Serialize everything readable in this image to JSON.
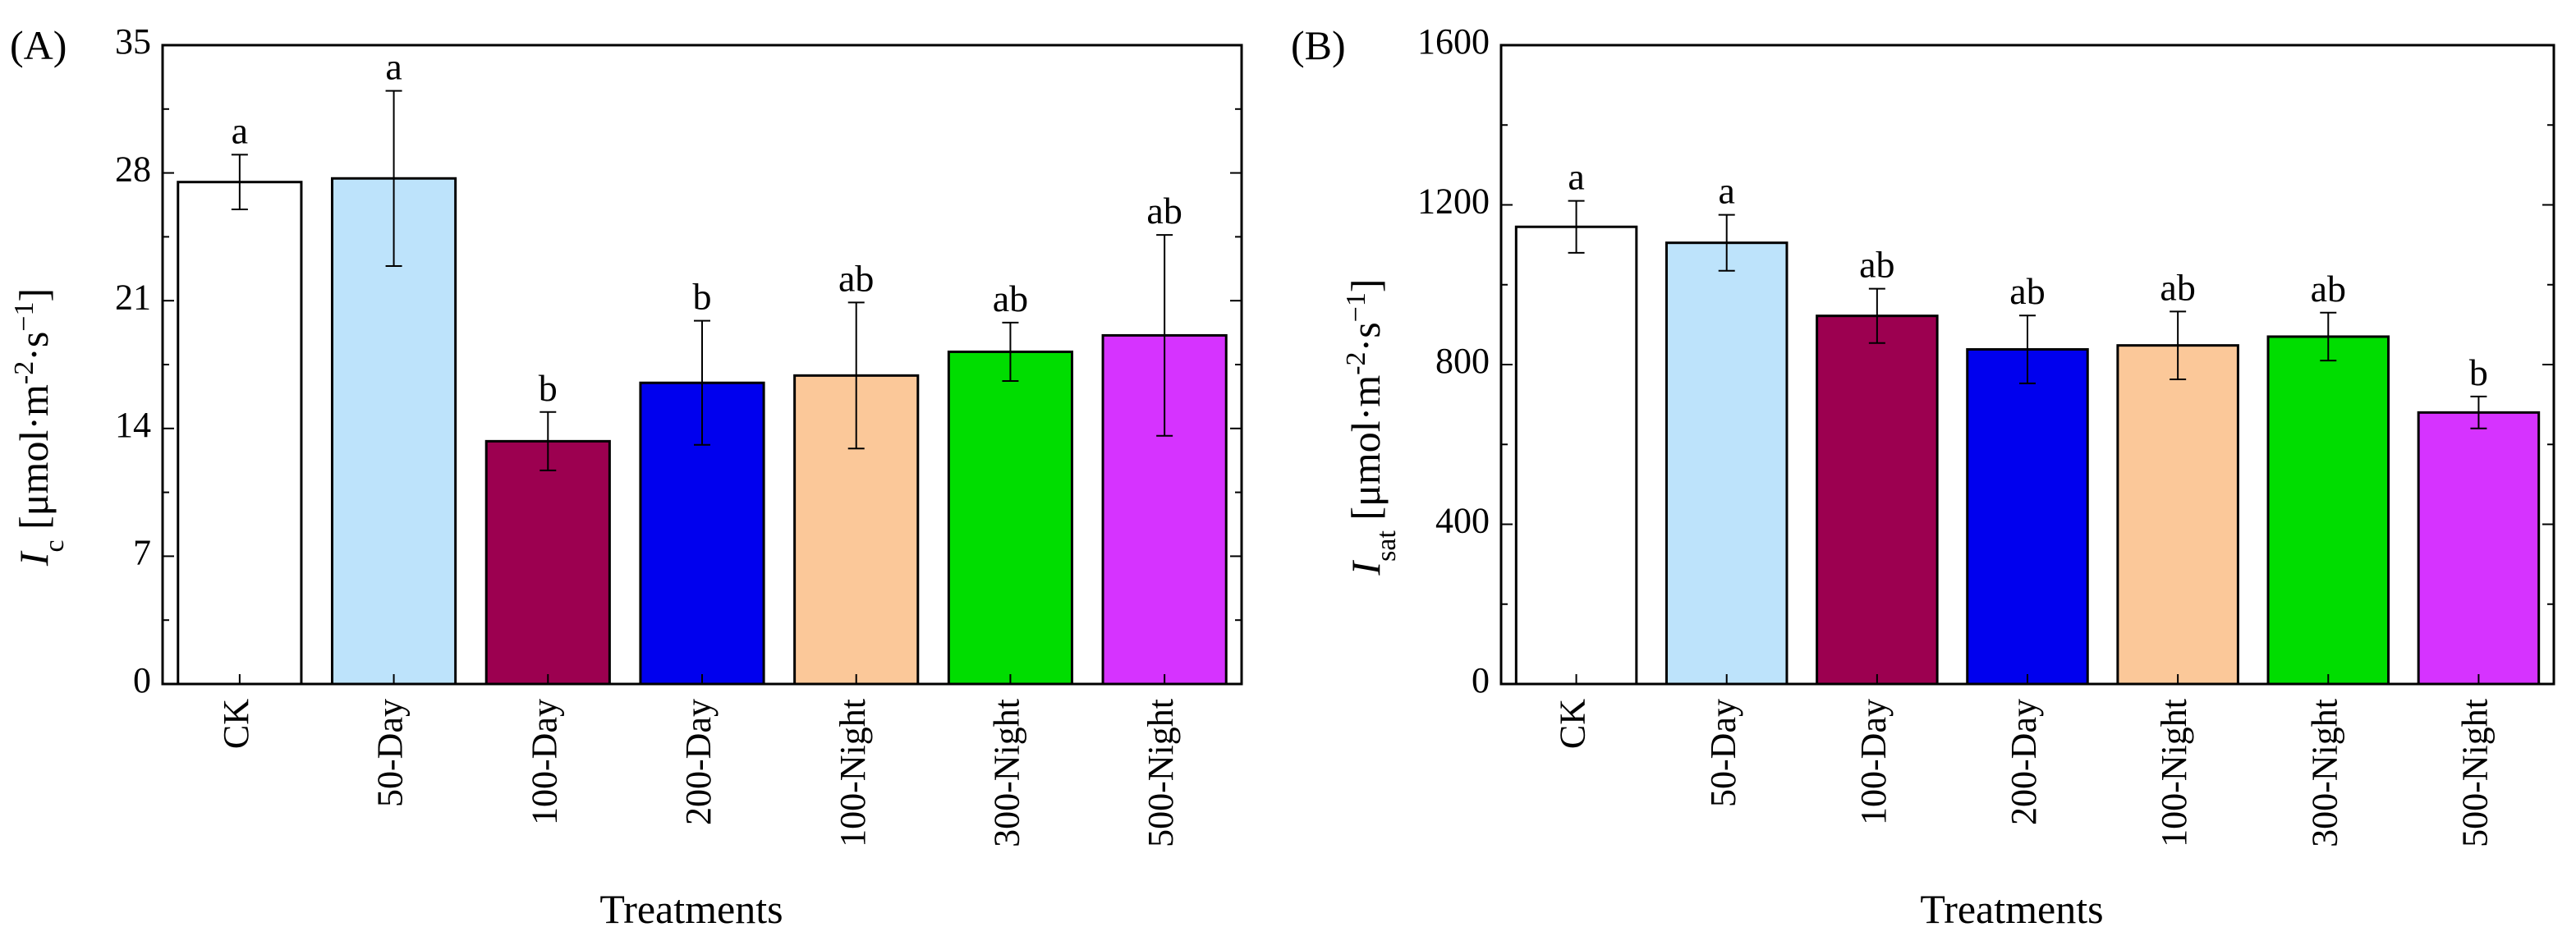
{
  "figure": {
    "xlabel_common": "Treatments"
  },
  "chart_data": [
    {
      "type": "bar",
      "panel_label": "(A)",
      "ylabel": {
        "italic": "I",
        "sub": "c",
        "unit_pre": " [μmol·m",
        "sup1": "-2",
        "unit_mid": "·s",
        "sup2": "−1",
        "unit_post": "]"
      },
      "xlabel": "Treatments",
      "ylim": [
        0,
        35
      ],
      "yticks": [
        0,
        7,
        14,
        21,
        28,
        35
      ],
      "categories": [
        "CK",
        "50-Day",
        "100-Day",
        "200-Day",
        "100-Night",
        "300-Night",
        "500-Night"
      ],
      "values": [
        27.5,
        27.7,
        13.3,
        16.5,
        16.9,
        18.2,
        19.1
      ],
      "errors": [
        1.5,
        4.8,
        1.6,
        3.4,
        4.0,
        1.6,
        5.5
      ],
      "significance": [
        "a",
        "a",
        "b",
        "b",
        "ab",
        "ab",
        "ab"
      ],
      "colors": [
        "#ffffff",
        "#bde3fb",
        "#9c0050",
        "#0000ee",
        "#fbc899",
        "#00dd00",
        "#d633ff"
      ]
    },
    {
      "type": "bar",
      "panel_label": "(B)",
      "ylabel": {
        "italic": "I",
        "sub": "sat",
        "unit_pre": " [μmol·m",
        "sup1": "-2",
        "unit_mid": "·s",
        "sup2": "−1",
        "unit_post": "]"
      },
      "xlabel": "Treatments",
      "ylim": [
        0,
        1600
      ],
      "yticks": [
        0,
        400,
        800,
        1200,
        1600
      ],
      "categories": [
        "CK",
        "50-Day",
        "100-Day",
        "200-Day",
        "100-Night",
        "300-Night",
        "500-Night"
      ],
      "values": [
        1145,
        1105,
        922,
        838,
        848,
        870,
        680
      ],
      "errors": [
        65,
        70,
        68,
        85,
        85,
        60,
        40
      ],
      "significance": [
        "a",
        "a",
        "ab",
        "ab",
        "ab",
        "ab",
        "b"
      ],
      "colors": [
        "#ffffff",
        "#bde3fb",
        "#9c0050",
        "#0000ee",
        "#fbc899",
        "#00dd00",
        "#d633ff"
      ]
    }
  ]
}
